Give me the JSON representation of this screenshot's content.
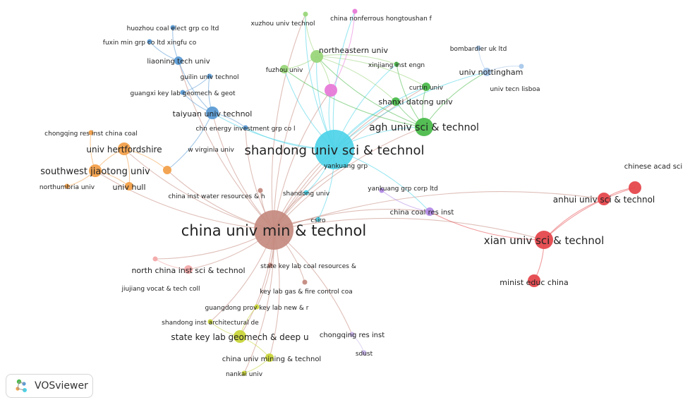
{
  "colors": {
    "blue": "#5b9bd5",
    "green": "#4cbb4c",
    "cyan": "#4dd3e8",
    "brown": "#c48a7f",
    "orange": "#f2a04a",
    "red": "#e5484d",
    "purple": "#b28ae6",
    "yellow": "#c9d63a",
    "pink": "#e77ad8",
    "lightgreen": "#9ad67a"
  },
  "nodes": [
    {
      "id": "cumt",
      "label": "china univ min & technol",
      "color": "#c48a7f",
      "size": "xl"
    },
    {
      "id": "sdust",
      "label": "shandong univ sci & technol",
      "color": "#4dd3e8",
      "size": "xl"
    },
    {
      "id": "agh",
      "label": "agh univ sci & technol",
      "color": "#4cbb4c",
      "size": "lg"
    },
    {
      "id": "xust",
      "label": "xian univ sci & technol",
      "color": "#e5484d",
      "size": "lg"
    },
    {
      "id": "anhui",
      "label": "anhui univ sci & technol",
      "color": "#e5484d",
      "size": "md"
    },
    {
      "id": "cas",
      "label": "chinese acad sci",
      "color": "#e5484d",
      "size": "md"
    },
    {
      "id": "minist",
      "label": "minist educ china",
      "color": "#e5484d",
      "size": "md"
    },
    {
      "id": "swjtu",
      "label": "southwest jiaotong univ",
      "color": "#f2a04a",
      "size": "md"
    },
    {
      "id": "herts",
      "label": "univ hertfordshire",
      "color": "#f2a04a",
      "size": "md"
    },
    {
      "id": "hull",
      "label": "univ hull",
      "color": "#f2a04a",
      "size": "sm"
    },
    {
      "id": "northumbria",
      "label": "northumbria univ",
      "color": "#f2a04a",
      "size": "xs"
    },
    {
      "id": "cqres",
      "label": "chongqing res inst china coal",
      "color": "#f2a04a",
      "size": "xs"
    },
    {
      "id": "wvu",
      "label": "w virginia univ",
      "color": "#f2a04a",
      "size": "sm"
    },
    {
      "id": "taiyuan",
      "label": "taiyuan univ technol",
      "color": "#5b9bd5",
      "size": "md"
    },
    {
      "id": "liaoning",
      "label": "liaoning tech univ",
      "color": "#5b9bd5",
      "size": "sm"
    },
    {
      "id": "huozhou",
      "label": "huozhou coal elect grp co ltd",
      "color": "#5b9bd5",
      "size": "xs"
    },
    {
      "id": "fuxin",
      "label": "fuxin min grp co ltd xingfu co",
      "color": "#5b9bd5",
      "size": "xs"
    },
    {
      "id": "guilin",
      "label": "guilin univ technol",
      "color": "#5b9bd5",
      "size": "xs"
    },
    {
      "id": "guangxi",
      "label": "guangxi key lab geomech & geot",
      "color": "#5b9bd5",
      "size": "xs"
    },
    {
      "id": "chnenergy",
      "label": "chn energy investment grp co l",
      "color": "#5b9bd5",
      "size": "xs"
    },
    {
      "id": "neu",
      "label": "northeastern univ",
      "color": "#9ad67a",
      "size": "md"
    },
    {
      "id": "xuzhou",
      "label": "xuzhou univ technol",
      "color": "#9ad67a",
      "size": "xs"
    },
    {
      "id": "fuzhou",
      "label": "fuzhou univ",
      "color": "#9ad67a",
      "size": "sm"
    },
    {
      "id": "chinanonf",
      "label": "china nonferrous hongtoushan f",
      "color": "#e77ad8",
      "size": "xs"
    },
    {
      "id": "pinknode",
      "label": "",
      "color": "#e77ad8",
      "size": "md"
    },
    {
      "id": "xjinst",
      "label": "xinjiang inst engn",
      "color": "#4cbb4c",
      "size": "xs"
    },
    {
      "id": "curtin",
      "label": "curtin univ",
      "color": "#4cbb4c",
      "size": "sm"
    },
    {
      "id": "datong",
      "label": "shanxi datong univ",
      "color": "#4cbb4c",
      "size": "sm"
    },
    {
      "id": "nott",
      "label": "univ nottingham",
      "color": "#a9c8ea",
      "size": "sm"
    },
    {
      "id": "bombardier",
      "label": "bombardier uk ltd",
      "color": "#a9c8ea",
      "size": "xs"
    },
    {
      "id": "lisboa",
      "label": "univ tecn lisboa",
      "color": "#a9c8ea",
      "size": "xs"
    },
    {
      "id": "yankuang",
      "label": "yankuang grp",
      "color": "#4dd3e8",
      "size": "xs"
    },
    {
      "id": "yankuangcorp",
      "label": "yankuang grp corp ltd",
      "color": "#b28ae6",
      "size": "xs"
    },
    {
      "id": "ccri",
      "label": "china coal res inst",
      "color": "#b28ae6",
      "size": "sm"
    },
    {
      "id": "sdu",
      "label": "shandong univ",
      "color": "#4dd3e8",
      "size": "xs"
    },
    {
      "id": "csiro",
      "label": "csiro",
      "color": "#4dd3e8",
      "size": "xs"
    },
    {
      "id": "ciwr",
      "label": "china inst water resources & h",
      "color": "#c48a7f",
      "size": "xs"
    },
    {
      "id": "ncist",
      "label": "north china inst sci & technol",
      "color": "#f3a9a9",
      "size": "sm"
    },
    {
      "id": "jiujiang",
      "label": "jiujiang vocat & tech coll",
      "color": "#f3a9a9",
      "size": "xs"
    },
    {
      "id": "sklcoal",
      "label": "state key lab coal resources &",
      "color": "#c48a7f",
      "size": "xs"
    },
    {
      "id": "klgas",
      "label": "key lab gas & fire control coa",
      "color": "#c48a7f",
      "size": "xs"
    },
    {
      "id": "gdprov",
      "label": "guangdong prov key lab new & r",
      "color": "#c9d63a",
      "size": "xs"
    },
    {
      "id": "sdarch",
      "label": "shandong inst architectural de",
      "color": "#c9d63a",
      "size": "xs"
    },
    {
      "id": "sklgeo",
      "label": "state key lab geomech & deep u",
      "color": "#c9d63a",
      "size": "md"
    },
    {
      "id": "cumining",
      "label": "china univ mining & technol",
      "color": "#c9d63a",
      "size": "sm"
    },
    {
      "id": "nankai",
      "label": "nankai univ",
      "color": "#c9d63a",
      "size": "xs"
    },
    {
      "id": "cqri",
      "label": "chongqing res inst",
      "color": "#c8b4ea",
      "size": "xs"
    },
    {
      "id": "sdust2",
      "label": "sdust",
      "color": "#c8b4ea",
      "size": "xs"
    }
  ],
  "edges": [
    [
      "cumt",
      "sdust"
    ],
    [
      "cumt",
      "agh"
    ],
    [
      "cumt",
      "xust"
    ],
    [
      "cumt",
      "anhui"
    ],
    [
      "cumt",
      "swjtu"
    ],
    [
      "cumt",
      "herts"
    ],
    [
      "cumt",
      "taiyuan"
    ],
    [
      "cumt",
      "neu"
    ],
    [
      "cumt",
      "datong"
    ],
    [
      "cumt",
      "ccri"
    ],
    [
      "cumt",
      "sklgeo"
    ],
    [
      "cumt",
      "ncist"
    ],
    [
      "cumt",
      "sklcoal"
    ],
    [
      "cumt",
      "klgas"
    ],
    [
      "cumt",
      "cumining"
    ],
    [
      "cumt",
      "cqri"
    ],
    [
      "cumt",
      "wvu"
    ],
    [
      "cumt",
      "ciwr"
    ],
    [
      "cumt",
      "sdu"
    ],
    [
      "cumt",
      "csiro"
    ],
    [
      "cumt",
      "gdprov"
    ],
    [
      "cumt",
      "jiujiang"
    ],
    [
      "cumt",
      "yankuang"
    ],
    [
      "cumt",
      "chnenergy"
    ],
    [
      "cumt",
      "liaoning"
    ],
    [
      "cumt",
      "xuzhou"
    ],
    [
      "cumt",
      "curtin"
    ],
    [
      "cumt",
      "pinknode"
    ],
    [
      "cumt",
      "nankai"
    ],
    [
      "cumt",
      "sdarch"
    ],
    [
      "sdust",
      "agh"
    ],
    [
      "sdust",
      "neu"
    ],
    [
      "sdust",
      "datong"
    ],
    [
      "sdust",
      "curtin"
    ],
    [
      "sdust",
      "xjinst"
    ],
    [
      "sdust",
      "taiyuan"
    ],
    [
      "sdust",
      "yankuang"
    ],
    [
      "sdust",
      "chnenergy"
    ],
    [
      "sdust",
      "csiro"
    ],
    [
      "sdust",
      "sdu"
    ],
    [
      "sdust",
      "fuzhou"
    ],
    [
      "sdust",
      "pinknode"
    ],
    [
      "sdust",
      "xuzhou"
    ],
    [
      "sdust",
      "nott"
    ],
    [
      "sdust",
      "ccri"
    ],
    [
      "sdust",
      "chinanonf"
    ],
    [
      "agh",
      "datong"
    ],
    [
      "agh",
      "curtin"
    ],
    [
      "agh",
      "xjinst"
    ],
    [
      "agh",
      "neu"
    ],
    [
      "agh",
      "fuzhou"
    ],
    [
      "agh",
      "nott"
    ],
    [
      "neu",
      "xjinst"
    ],
    [
      "neu",
      "curtin"
    ],
    [
      "neu",
      "datong"
    ],
    [
      "neu",
      "xuzhou"
    ],
    [
      "neu",
      "fuzhou"
    ],
    [
      "neu",
      "pinknode"
    ],
    [
      "xust",
      "anhui"
    ],
    [
      "xust",
      "minist"
    ],
    [
      "xust",
      "cas"
    ],
    [
      "xust",
      "ccri"
    ],
    [
      "anhui",
      "cas"
    ],
    [
      "swjtu",
      "herts"
    ],
    [
      "swjtu",
      "hull"
    ],
    [
      "swjtu",
      "northumbria"
    ],
    [
      "swjtu",
      "cqres"
    ],
    [
      "herts",
      "hull"
    ],
    [
      "herts",
      "wvu"
    ],
    [
      "taiyuan",
      "liaoning"
    ],
    [
      "taiyuan",
      "guilin"
    ],
    [
      "taiyuan",
      "guangxi"
    ],
    [
      "taiyuan",
      "chnenergy"
    ],
    [
      "liaoning",
      "huozhou"
    ],
    [
      "liaoning",
      "fuxin"
    ],
    [
      "guilin",
      "guangxi"
    ],
    [
      "taiyuan",
      "wvu"
    ],
    [
      "nott",
      "bombardier"
    ],
    [
      "nott",
      "lisboa"
    ],
    [
      "ccri",
      "yankuangcorp"
    ],
    [
      "sklgeo",
      "cumining"
    ],
    [
      "sklgeo",
      "sdarch"
    ],
    [
      "sklgeo",
      "gdprov"
    ],
    [
      "cumining",
      "nankai"
    ],
    [
      "cqri",
      "sdust2"
    ],
    [
      "ncist",
      "jiujiang"
    ],
    [
      "chinanonf",
      "pinknode"
    ]
  ],
  "footer": {
    "brand": "VOSviewer",
    "logo_icon": "vosviewer-logo-icon"
  }
}
